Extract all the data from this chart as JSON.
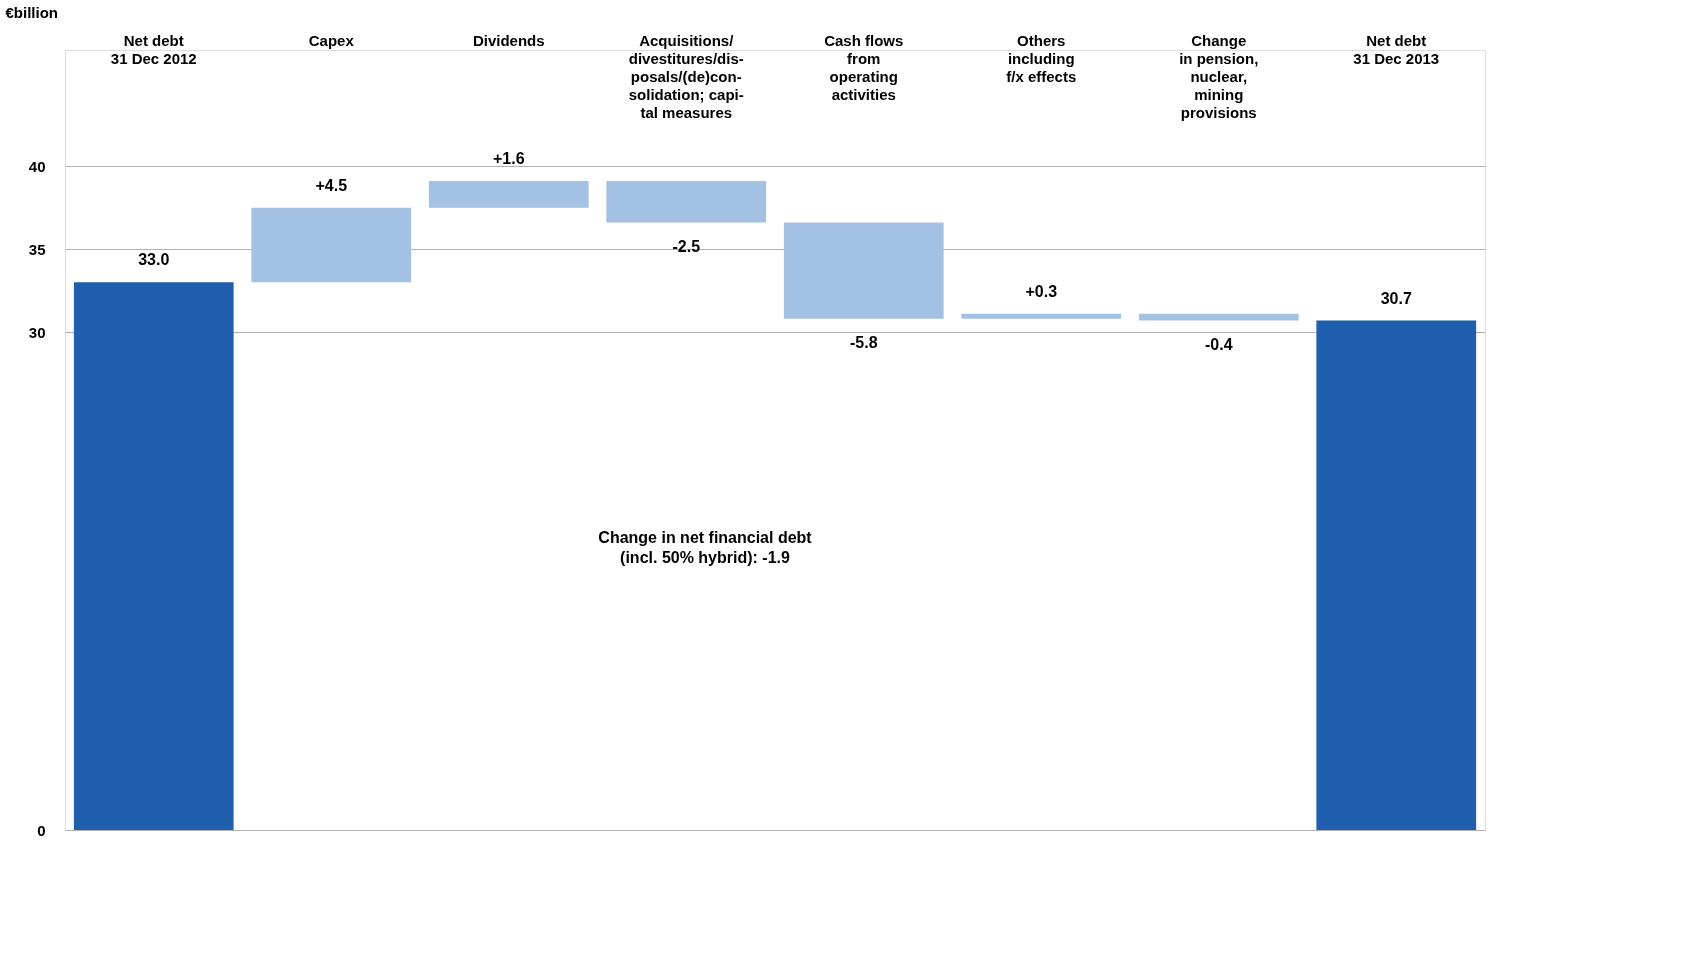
{
  "chart_data": {
    "type": "bar",
    "ylabel": "€billion",
    "categories": [
      "Net debt\n31 Dec 2012",
      "Capex",
      "Dividends",
      "Acquisitions/\ndivestitures/dis-\nposals/(de)con-\nsolidation; capi-\ntal measures",
      "Cash flows\nfrom\noperating\nactivities",
      "Others\nincluding\nf/x effects",
      "Change\nin pension,\nnuclear,\nmining\nprovisions",
      "Net debt\n31 Dec 2013"
    ],
    "values": [
      33.0,
      4.5,
      1.6,
      -2.5,
      -5.8,
      0.3,
      -0.4,
      30.7
    ],
    "base": [
      0,
      33.0,
      37.5,
      39.1,
      36.6,
      30.8,
      31.1,
      0
    ],
    "value_labels": [
      "33.0",
      "+4.5",
      "+1.6",
      "-2.5",
      "-5.8",
      "+0.3",
      "-0.4",
      "30.7"
    ],
    "colors": [
      "#1f5fad",
      "#a3c1e2",
      "#a3c1e2",
      "#a3c1e2",
      "#a3c1e2",
      "#a3c1e2",
      "#a3c1e2",
      "#1f5fad"
    ],
    "ylim": [
      0,
      47
    ],
    "yticks": [
      0,
      30,
      35,
      40
    ],
    "grid": "y",
    "legend": false,
    "annotations": [
      "Change in net financial debt\n(incl. 50% hybrid):  -1.9"
    ]
  }
}
